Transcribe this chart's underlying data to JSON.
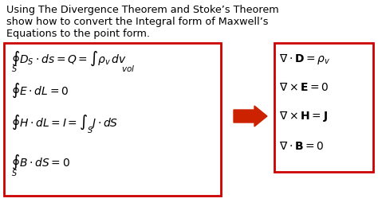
{
  "background_color": "#ffffff",
  "title_lines": [
    "Using The Divergence Theorem and Stoke’s Theorem",
    "show how to convert the Integral form of Maxwell’s",
    "Equations to the point form."
  ],
  "left_box_color": "#cc0000",
  "right_box_color": "#cc0000",
  "arrow_color": "#cc2200",
  "figsize": [
    4.74,
    2.74
  ],
  "dpi": 100
}
